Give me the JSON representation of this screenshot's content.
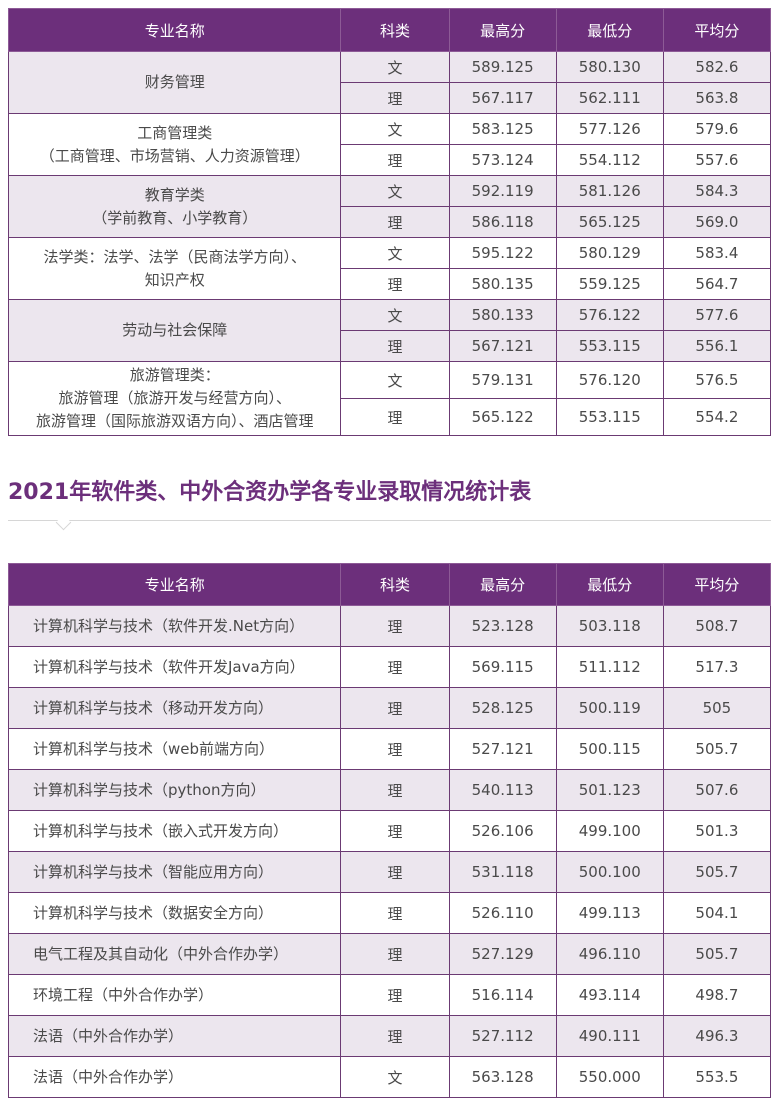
{
  "headers": [
    "专业名称",
    "科类",
    "最高分",
    "最低分",
    "平均分"
  ],
  "table1": [
    {
      "name": "财务管理",
      "rows": [
        [
          "文",
          "589.125",
          "580.130",
          "582.6"
        ],
        [
          "理",
          "567.117",
          "562.111",
          "563.8"
        ]
      ]
    },
    {
      "name": "工商管理类\n（工商管理、市场营销、人力资源管理）",
      "rows": [
        [
          "文",
          "583.125",
          "577.126",
          "579.6"
        ],
        [
          "理",
          "573.124",
          "554.112",
          "557.6"
        ]
      ]
    },
    {
      "name": "教育学类\n（学前教育、小学教育）",
      "rows": [
        [
          "文",
          "592.119",
          "581.126",
          "584.3"
        ],
        [
          "理",
          "586.118",
          "565.125",
          "569.0"
        ]
      ]
    },
    {
      "name": "法学类：法学、法学（民商法学方向）、\n知识产权",
      "rows": [
        [
          "文",
          "595.122",
          "580.129",
          "583.4"
        ],
        [
          "理",
          "580.135",
          "559.125",
          "564.7"
        ]
      ]
    },
    {
      "name": "劳动与社会保障",
      "rows": [
        [
          "文",
          "580.133",
          "576.122",
          "577.6"
        ],
        [
          "理",
          "567.121",
          "553.115",
          "556.1"
        ]
      ]
    },
    {
      "name": "旅游管理类：\n旅游管理（旅游开发与经营方向）、\n旅游管理（国际旅游双语方向）、酒店管理",
      "rows": [
        [
          "文",
          "579.131",
          "576.120",
          "576.5"
        ],
        [
          "理",
          "565.122",
          "553.115",
          "554.2"
        ]
      ]
    }
  ],
  "section_title": "2021年软件类、中外合资办学各专业录取情况统计表",
  "table2": [
    [
      "计算机科学与技术（软件开发.Net方向）",
      "理",
      "523.128",
      "503.118",
      "508.7"
    ],
    [
      "计算机科学与技术（软件开发Java方向）",
      "理",
      "569.115",
      "511.112",
      "517.3"
    ],
    [
      "计算机科学与技术（移动开发方向）",
      "理",
      "528.125",
      "500.119",
      "505"
    ],
    [
      "计算机科学与技术（web前端方向）",
      "理",
      "527.121",
      "500.115",
      "505.7"
    ],
    [
      "计算机科学与技术（python方向）",
      "理",
      "540.113",
      "501.123",
      "507.6"
    ],
    [
      "计算机科学与技术（嵌入式开发方向）",
      "理",
      "526.106",
      "499.100",
      "501.3"
    ],
    [
      "计算机科学与技术（智能应用方向）",
      "理",
      "531.118",
      "500.100",
      "505.7"
    ],
    [
      "计算机科学与技术（数据安全方向）",
      "理",
      "526.110",
      "499.113",
      "504.1"
    ],
    [
      "电气工程及其自动化（中外合作办学）",
      "理",
      "527.129",
      "496.110",
      "505.7"
    ],
    [
      "环境工程（中外合作办学）",
      "理",
      "516.114",
      "493.114",
      "498.7"
    ],
    [
      "法语（中外合作办学）",
      "理",
      "527.112",
      "490.111",
      "496.3"
    ],
    [
      "法语（中外合作办学）",
      "文",
      "563.128",
      "550.000",
      "553.5"
    ]
  ]
}
